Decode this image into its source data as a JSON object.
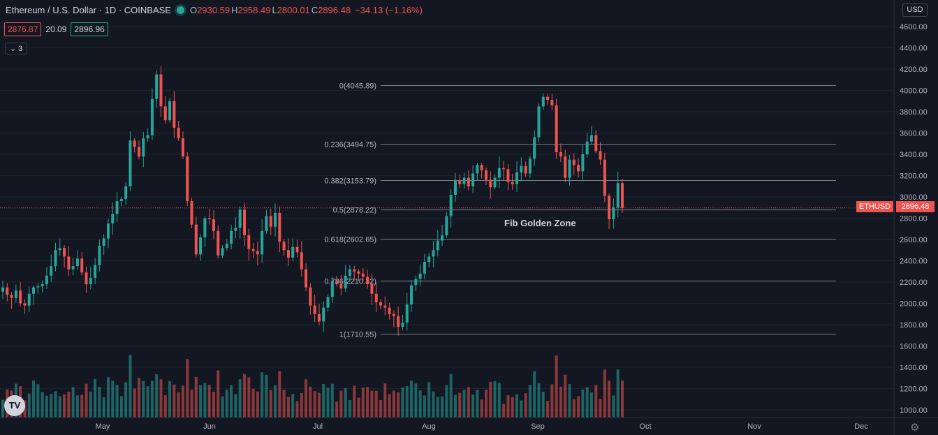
{
  "header": {
    "symbol_title": "Ethereum / U.S. Dollar · 1D · COINBASE",
    "open_label": "O",
    "open": "2930.59",
    "high_label": "H",
    "high": "2958.49",
    "low_label": "L",
    "low": "2800.01",
    "close_label": "C",
    "close": "2896.48",
    "change": "−34.13 (−1.16%)"
  },
  "bid_ask": {
    "bid": "2876.87",
    "spread": "20.09",
    "ask": "2896.96"
  },
  "indicators_collapsed": "3",
  "currency": "USD",
  "last_price": {
    "symbol": "ETHUSD",
    "value": "2896.48",
    "color": "#ef5350"
  },
  "annotation": "Fib Golden Zone",
  "logo_text": "TV",
  "colors": {
    "up": "#26a69a",
    "down": "#ef5350",
    "background": "#131722",
    "grid": "#1e222d",
    "fib": "#787b86"
  },
  "chart_data": {
    "type": "candlestick",
    "x_ticks": [
      "May",
      "Jun",
      "Jul",
      "Aug",
      "Sep",
      "Oct",
      "Nov",
      "Dec"
    ],
    "y_ticks": [
      1000,
      1200,
      1400,
      1600,
      1800,
      2000,
      2200,
      2400,
      2600,
      2800,
      3000,
      3200,
      3400,
      3600,
      3800,
      4000,
      4200,
      4400,
      4600
    ],
    "y_tick_labels": [
      "1000.00",
      "1200.00",
      "1400.00",
      "1600.00",
      "1800.00",
      "2000.00",
      "2200.00",
      "2400.00",
      "2600.00",
      "2800.00",
      "3000.00",
      "3200.00",
      "3400.00",
      "3600.00",
      "3800.00",
      "4000.00",
      "4200.00",
      "4400.00",
      "4600.00"
    ],
    "ylim": [
      900,
      4800
    ],
    "current_price": 2896.48,
    "fib_levels": [
      {
        "ratio": "0",
        "price": 4045.89,
        "label": "0(4045.89)"
      },
      {
        "ratio": "0.236",
        "price": 3494.75,
        "label": "0.236(3494.75)"
      },
      {
        "ratio": "0.382",
        "price": 3153.79,
        "label": "0.382(3153.79)"
      },
      {
        "ratio": "0.5",
        "price": 2878.22,
        "label": "0.5(2878.22)"
      },
      {
        "ratio": "0.618",
        "price": 2602.65,
        "label": "0.618(2602.65)"
      },
      {
        "ratio": "0.786",
        "price": 2210.32,
        "label": "0.786(2210.32)"
      },
      {
        "ratio": "1",
        "price": 1710.55,
        "label": "1(1710.55)"
      }
    ],
    "closes": [
      2150,
      2080,
      2050,
      2120,
      2000,
      1980,
      2090,
      2150,
      2160,
      2180,
      2260,
      2350,
      2500,
      2520,
      2440,
      2320,
      2350,
      2420,
      2290,
      2180,
      2240,
      2360,
      2540,
      2610,
      2750,
      2840,
      2960,
      2980,
      3100,
      3530,
      3470,
      3380,
      3550,
      3580,
      3920,
      4150,
      3850,
      3720,
      3900,
      3650,
      3550,
      3380,
      2960,
      2740,
      2460,
      2620,
      2800,
      2790,
      2680,
      2450,
      2520,
      2560,
      2680,
      2710,
      2880,
      2640,
      2510,
      2490,
      2460,
      2680,
      2820,
      2720,
      2850,
      2580,
      2500,
      2430,
      2530,
      2480,
      2320,
      2150,
      1980,
      1900,
      1830,
      1960,
      2060,
      2210,
      2180,
      2140,
      2260,
      2320,
      2300,
      2280,
      2250,
      2180,
      2090,
      2010,
      1980,
      1960,
      1900,
      1880,
      1780,
      1820,
      1990,
      2170,
      2230,
      2280,
      2390,
      2440,
      2500,
      2590,
      2640,
      2820,
      3020,
      3150,
      3120,
      3180,
      3100,
      3220,
      3300,
      3250,
      3160,
      3090,
      3180,
      3270,
      3260,
      3140,
      3120,
      3230,
      3290,
      3220,
      3360,
      3560,
      3850,
      3940,
      3910,
      3860,
      3420,
      3380,
      3180,
      3350,
      3300,
      3240,
      3400,
      3520,
      3580,
      3430,
      3350,
      3010,
      2790,
      2900,
      3130,
      2896.48
    ],
    "volume_unit_note": ""
  }
}
